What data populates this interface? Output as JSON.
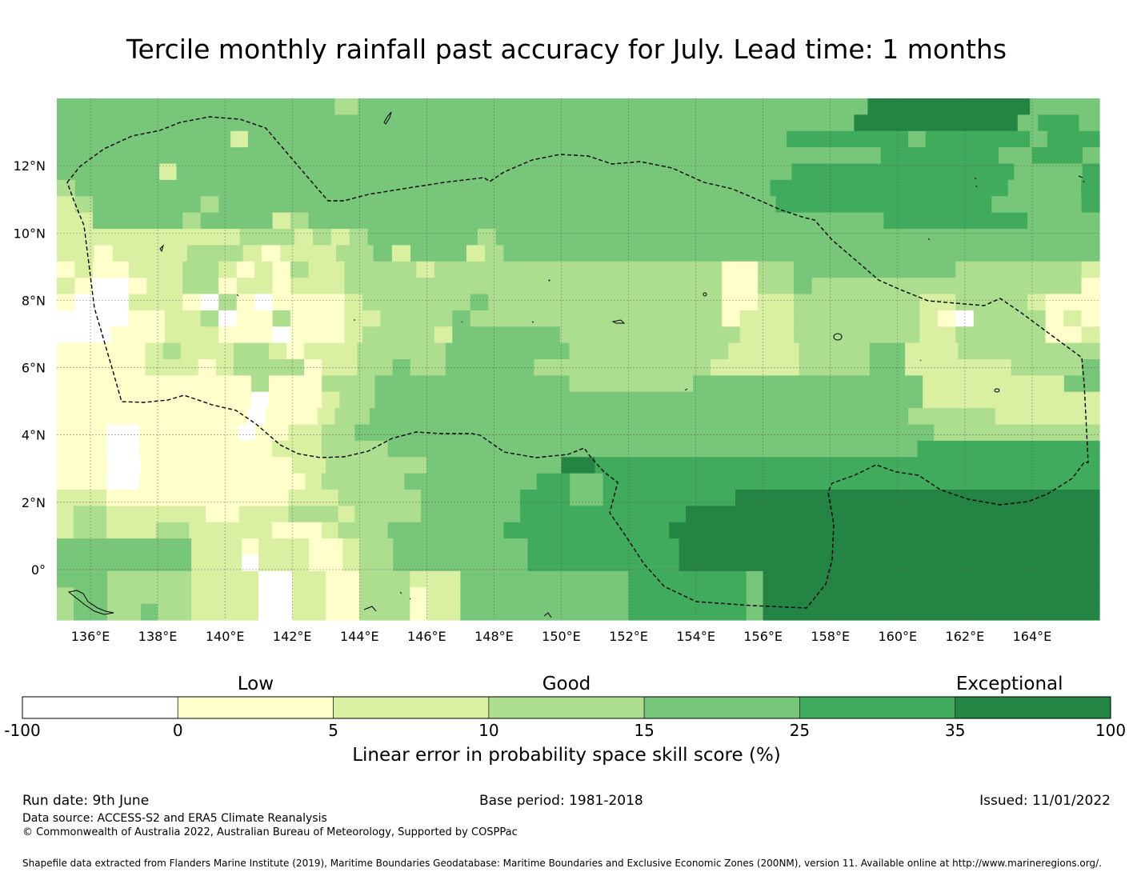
{
  "title": "Tercile monthly rainfall past accuracy for July. Lead time: 1 months",
  "map": {
    "x_ticks": [
      "136°E",
      "138°E",
      "140°E",
      "142°E",
      "144°E",
      "146°E",
      "148°E",
      "150°E",
      "152°E",
      "154°E",
      "156°E",
      "158°E",
      "160°E",
      "162°E",
      "164°E"
    ],
    "x_tick_values": [
      136,
      138,
      140,
      142,
      144,
      146,
      148,
      150,
      152,
      154,
      156,
      158,
      160,
      162,
      164
    ],
    "y_ticks": [
      "12°N",
      "10°N",
      "8°N",
      "6°N",
      "4°N",
      "2°N",
      "0°"
    ],
    "y_tick_values": [
      12,
      10,
      8,
      6,
      4,
      2,
      0
    ],
    "lon_range": [
      135,
      166
    ],
    "lat_range": [
      -1.5,
      14
    ],
    "grid": true,
    "zone_boundary": "dashed black line",
    "cell_colors": {
      "W": "#ffffff",
      "Y": "#ffffcc",
      "L": "#d9f0a3",
      "M": "#addd8e",
      "G": "#78c679",
      "D": "#41ab5d",
      "X": "#238443"
    },
    "cell_grid": [
      "GGGGGGGGGGGGMGGGGGGGGGGGGGGGGGGGGGGXXXXXXXGGG",
      "GGGGGGGGGGGGGGGGGGGGGGGGGGGGGGGGGGGGGGGXXXXXXXXGDDG",
      "GGGGGGGGGGLGGGGGGGGGGGGGGGGGGGGGGGGGGGGGGGDDDDDDDGDDDDDDGDDD",
      "GGGGGGGGGGGGGGGGGGGGGGGGGGGGGGGGGGGGGGGGGGGGGGGGGDDDDDDDGGDDDG",
      "GGGGGGLGGGGGGGGGGGGGGGGGGGGGGGGGGGGGGGGGGGGDDDDDDDDDDDDDGGGGD",
      "MGGGGGGGGGGGGGGGGGGGGGGGGGGGGGGGGGGGGGGDDDDDDDDDDDDDGGGGD",
      "LMGGGGGGMGGGGGGGGGGGGGGGGGGGGGGGGGGGGGGGDDDDDDDDDDDDGGGGGD",
      "LLGGGGGMGGGGLMGGGGGGGGGGGGGGGGGGGGGGGGGGGGGGGGDDDDDDDDGGGG",
      "LLLLLLLLLLMMMLMLMGGGGGGMGGGGGGGGGGGGGGGGGGGGGGGGGGGGGGGGG",
      "LLYLLLLMMMLYLLLMMGLGGGLMGGGGGGGGGGGGGGGGGGGGGGGGGGGGGGGG",
      "YLYYLLLMMLYLYMLLMMMMLMMMMMMMMMMMMMMMMYYMMGGGGGGGGGMMMMMMML",
      "LYWWYLLMMYLLYLLLMMMMMMMMMMMMMMMMMMMMMYYMMGMMMMMMMMMMMMMMMY",
      "YWWWLLLYWMYWYYYYLMMMMMMGMMMMMMMMMMMMMYYLLMMMMMMMLLMMMMLYYY",
      "WWWWYYLLMWYYMYYYLLMMMMGMMMMMMMMMMMMMMYLLLMMMMMMMLYWMMMMYLY",
      "WWWYYYLLLYYYWYYYLMMMMLGGGGGGMMMMMMMMMMLLLMMMMMMMLLMMMMMYYL",
      "YYYYYLMLLLMMLYLLLMMMMMGGGGGGGMMMMMMMMMLLLLMMMMGGLLLMMMMMMMM",
      "YYYYYLLLYLMMMMYLLMMGMMGGGGGMMMMMMMMMMLLLLLMMMMGGLLLLLLMMMMG",
      "YYYYYYYYYYYMYYYMMMGGGGGGGGGGGMMMMMMMGGGGGGGGGGGGGLLLLLLLLGG",
      "YYYYYYYYYYYWYYYLMMGGGGGGGGGGGGGGGGGGGGGGGGGGGGGGGLLLLLLLLLL",
      "YYYYYYYYYYYWYYYLMMGGGGGGGGGGGGGGGGGGGGGGGGGGGGGGGMMMMMLLLLLL",
      "YYYWWYYYYYYWYYLLMMGGGGGGGGGGGGGGGGGGGGGGGGGGGGGGGGGGGMMMMMMMMMM",
      "YYYWWYYYYYYYYLLLMMMMGGGGGGGGGGGGGGGGGGGGGGGGGGGGGGGGDDDDDDDDDDD",
      "YYYWWYYYYYYYYYLLMMMMMMGGGGGGGGXXDDDDDDDDDDDDDDDDDDDDDDDDDDDDDD",
      "YYYWWYYYYYYYYYYLMMMMMGGGGGGGGDDGGDDDDDDDDDDDDDDDDDDDDDDDDDDDDDD",
      "LLLYYYYYYYYYYYLLLMMMMMGGGGGGDDDGGDDDDDDDDXXXXXXXXXXXXXXXXXXXXXX",
      "LMMLLLLLLYYLLLMMMLMMMMGGGGGGDDDDDDDDDDXXXXXXXXXXXXXXXXXXXXXXXXX",
      "LMMLLLMMLLLLLYYYLMMMGGGGGGGDDDDDDDDDDXXXXXXXXXXXXXXXXXXXXXXXXXX",
      "GGGGGGGGLLLYLLLYYLMMGGGGGGGGDDDDDDDDDXXXXXXXXXXXXXXXXXXXXXXXXX",
      "GGGGGGGGLLLWLLLYYLMMGGGGGGGGDDDDDDDDDXXXXXXXXXXXXXXXXXXXXXXXXX",
      "GGGMMMMMLLLLWWLLYYMMMLLLGGGGGGGGGGDDDDDDDGXXXXXXXXXXXXXXXXXXXX",
      "MGGMMMMMLLLLWWLLYYMMMYLLGGGGGGGGGGDDDDDDDGXXXXXXXXXXXXXXXXXXXX",
      "MGGMMGMMLLLLWWLLYYMMMYLLGGGGGGGGGGDDDDDDDGXXXXXXXXXXXXXXXXXXXX"
    ]
  },
  "colorbar": {
    "categories": [
      "Low",
      "Good",
      "Exceptional"
    ],
    "ticks": [
      "-100",
      "0",
      "5",
      "10",
      "15",
      "25",
      "35",
      "100"
    ],
    "colors": [
      "#ffffff",
      "#ffffcc",
      "#d9f0a3",
      "#addd8e",
      "#78c679",
      "#41ab5d",
      "#238443"
    ],
    "label": "Linear error in probability space skill score (%)"
  },
  "footer": {
    "run_date": "Run date: 9th June",
    "base_period": "Base period: 1981-2018",
    "issued": "Issued: 11/01/2022",
    "data_source": "Data source: ACCESS-S2 and ERA5 Climate Reanalysis",
    "copyright": "© Commonwealth of Australia 2022, Australian Bureau of Meteorology, Supported by COSPPac",
    "shapefile": "Shapefile data extracted from Flanders Marine Institute (2019), Maritime Boundaries Geodatabase: Maritime Boundaries and Exclusive Economic Zones (200NM), version 11. Available online at http://www.marineregions.org/."
  }
}
